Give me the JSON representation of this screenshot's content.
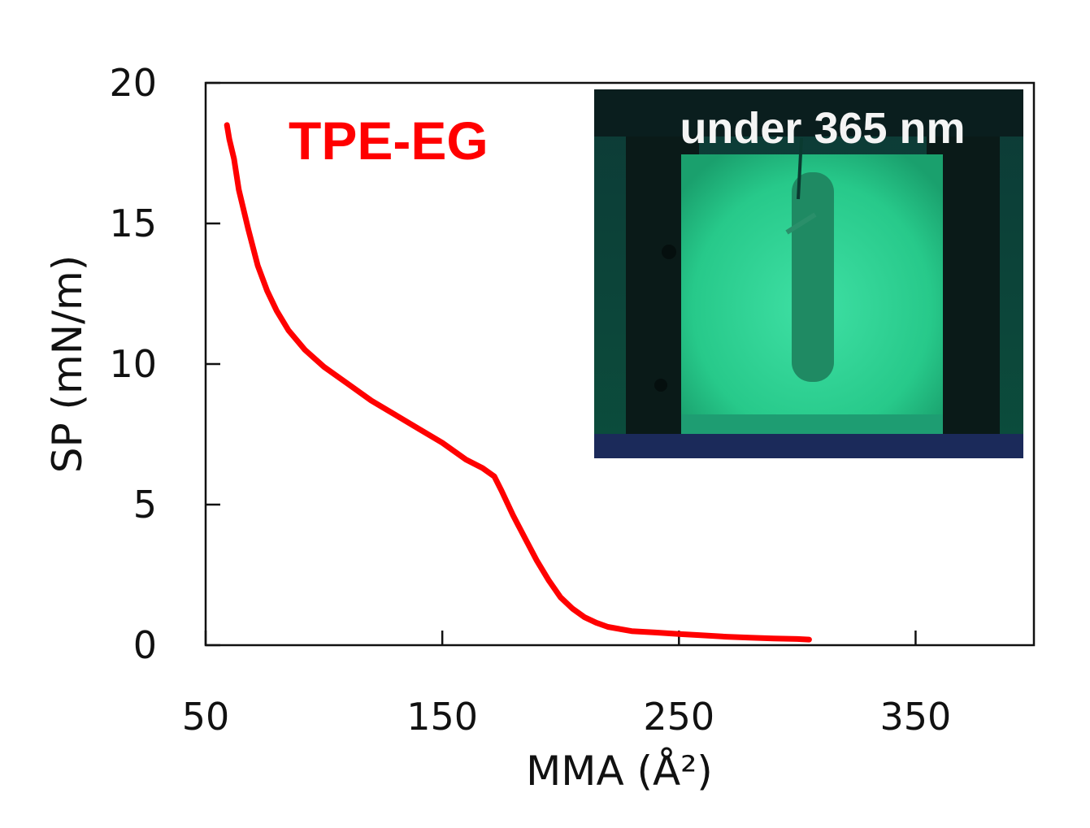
{
  "chart_data": {
    "type": "line",
    "xlabel": "MMA (Å²)",
    "ylabel": "SP (mN/m)",
    "xlim": [
      50,
      400
    ],
    "ylim": [
      0,
      20
    ],
    "xticks": [
      50,
      150,
      250,
      350
    ],
    "yticks": [
      0,
      5,
      10,
      15,
      20
    ],
    "grid": false,
    "series": [
      {
        "name": "TPE-EG",
        "color": "#ff0000",
        "x": [
          59,
          60,
          62,
          64,
          68,
          72,
          76,
          80,
          85,
          92,
          100,
          110,
          120,
          130,
          140,
          150,
          160,
          167,
          172,
          175,
          180,
          185,
          190,
          195,
          200,
          205,
          210,
          215,
          220,
          230,
          240,
          250,
          260,
          270,
          280,
          290,
          300,
          305
        ],
        "y": [
          18.5,
          18.0,
          17.3,
          16.2,
          14.8,
          13.5,
          12.6,
          11.9,
          11.2,
          10.5,
          9.9,
          9.3,
          8.7,
          8.2,
          7.7,
          7.2,
          6.6,
          6.3,
          6.0,
          5.5,
          4.6,
          3.8,
          3.0,
          2.3,
          1.7,
          1.3,
          1.0,
          0.8,
          0.65,
          0.5,
          0.45,
          0.4,
          0.35,
          0.3,
          0.27,
          0.24,
          0.22,
          0.2
        ]
      }
    ],
    "inset": {
      "caption": "under 365 nm",
      "content": "green-fluorescent-trough-photo"
    }
  }
}
